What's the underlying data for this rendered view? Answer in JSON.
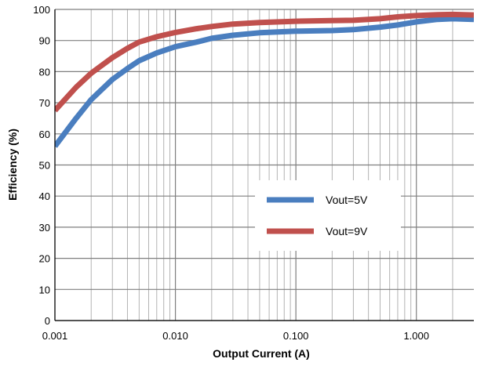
{
  "chart_data": {
    "type": "line",
    "xscale": "log",
    "xlabel": "Output Current (A)",
    "ylabel": "Efficiency (%)",
    "xlim": [
      0.001,
      3.0
    ],
    "ylim": [
      0,
      100
    ],
    "x_ticks": [
      0.001,
      0.01,
      0.1,
      1.0
    ],
    "x_tick_labels": [
      "0.001",
      "0.010",
      "0.100",
      "1.000"
    ],
    "y_ticks": [
      0,
      10,
      20,
      30,
      40,
      50,
      60,
      70,
      80,
      90,
      100
    ],
    "grid": true,
    "legend_position": "center-right",
    "series": [
      {
        "name": "Vout=5V",
        "color": "#4a7ebf",
        "x": [
          0.001,
          0.0015,
          0.002,
          0.003,
          0.004,
          0.005,
          0.007,
          0.01,
          0.015,
          0.02,
          0.03,
          0.05,
          0.1,
          0.2,
          0.3,
          0.5,
          0.7,
          1.0,
          1.5,
          2.0,
          3.0
        ],
        "y": [
          56,
          65,
          71,
          77.5,
          81,
          83.5,
          86,
          88,
          89.5,
          90.7,
          91.7,
          92.5,
          93,
          93.2,
          93.5,
          94.3,
          95,
          96,
          96.8,
          97,
          96.8
        ]
      },
      {
        "name": "Vout=9V",
        "color": "#c0504d",
        "x": [
          0.001,
          0.0015,
          0.002,
          0.003,
          0.004,
          0.005,
          0.007,
          0.01,
          0.015,
          0.02,
          0.03,
          0.05,
          0.1,
          0.2,
          0.3,
          0.5,
          0.7,
          1.0,
          1.5,
          2.0,
          3.0
        ],
        "y": [
          67.5,
          75,
          79.5,
          84.5,
          87.5,
          89.5,
          91.2,
          92.6,
          93.8,
          94.5,
          95.3,
          95.8,
          96.2,
          96.4,
          96.5,
          97,
          97.6,
          98,
          98.3,
          98.4,
          98.2
        ]
      }
    ]
  }
}
